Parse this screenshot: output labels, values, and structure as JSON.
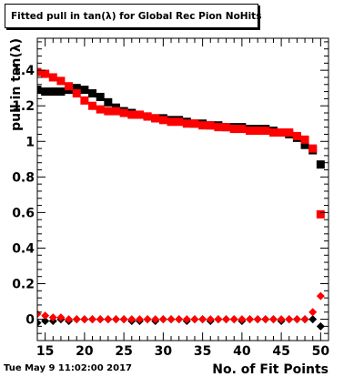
{
  "title": "Fitted pull in tan(λ) for Global Rec Pion NoHits",
  "timestamp": "Tue May  9 11:02:00 2017",
  "chart_data": {
    "type": "scatter",
    "title": "Fitted pull in tan(λ) for Global Rec Pion NoHits",
    "xlabel": "No. of Fit Points",
    "ylabel": "pull in tan(λ)",
    "xlim": [
      14,
      51
    ],
    "ylim": [
      -0.12,
      1.58
    ],
    "x_ticks": [
      15,
      20,
      25,
      30,
      35,
      40,
      45,
      50
    ],
    "y_ticks": [
      0,
      0.2,
      0.4,
      0.6,
      0.8,
      1,
      1.2,
      1.4
    ],
    "y_tick_labels": [
      "0",
      "0.2",
      "0.4",
      "0.6",
      "0.8",
      "1",
      "1.2",
      "1.4"
    ],
    "grid": false,
    "x": [
      14,
      15,
      16,
      17,
      18,
      19,
      20,
      21,
      22,
      23,
      24,
      25,
      26,
      27,
      28,
      29,
      30,
      31,
      32,
      33,
      34,
      35,
      36,
      37,
      38,
      39,
      40,
      41,
      42,
      43,
      44,
      45,
      46,
      47,
      48,
      49,
      50
    ],
    "series": [
      {
        "marker": "square",
        "color": "#000000",
        "values": [
          1.29,
          1.28,
          1.28,
          1.28,
          1.29,
          1.3,
          1.29,
          1.27,
          1.25,
          1.22,
          1.19,
          1.17,
          1.16,
          1.15,
          1.14,
          1.13,
          1.13,
          1.12,
          1.12,
          1.11,
          1.1,
          1.1,
          1.09,
          1.09,
          1.08,
          1.08,
          1.08,
          1.07,
          1.07,
          1.07,
          1.06,
          1.05,
          1.04,
          1.02,
          0.98,
          0.95,
          0.87
        ]
      },
      {
        "marker": "square",
        "color": "#ff0000",
        "values": [
          1.39,
          1.38,
          1.36,
          1.34,
          1.31,
          1.27,
          1.23,
          1.2,
          1.18,
          1.17,
          1.17,
          1.16,
          1.15,
          1.15,
          1.14,
          1.13,
          1.12,
          1.11,
          1.11,
          1.1,
          1.1,
          1.09,
          1.09,
          1.08,
          1.08,
          1.07,
          1.07,
          1.06,
          1.06,
          1.06,
          1.05,
          1.05,
          1.05,
          1.03,
          1.01,
          0.96,
          0.59
        ]
      },
      {
        "marker": "diamond",
        "color": "#000000",
        "values": [
          -0.02,
          -0.01,
          -0.01,
          0.0,
          -0.01,
          0.0,
          0.0,
          0.0,
          0.0,
          0.0,
          0.0,
          0.0,
          -0.01,
          -0.01,
          0.0,
          -0.01,
          0.0,
          0.0,
          0.0,
          -0.01,
          0.0,
          0.0,
          -0.01,
          0.0,
          0.0,
          0.0,
          -0.01,
          0.0,
          0.0,
          0.0,
          0.0,
          -0.01,
          0.0,
          0.0,
          0.0,
          0.0,
          -0.04
        ]
      },
      {
        "marker": "diamond",
        "color": "#ff0000",
        "values": [
          0.03,
          0.02,
          0.01,
          0.01,
          0.0,
          0.0,
          0.0,
          0.0,
          0.0,
          0.0,
          0.0,
          0.0,
          0.0,
          0.0,
          0.0,
          0.0,
          0.0,
          0.0,
          0.0,
          0.0,
          0.0,
          0.0,
          0.0,
          0.0,
          0.0,
          0.0,
          0.0,
          0.0,
          0.0,
          0.0,
          0.0,
          0.0,
          0.0,
          0.0,
          0.0,
          0.04,
          0.13
        ]
      }
    ]
  }
}
